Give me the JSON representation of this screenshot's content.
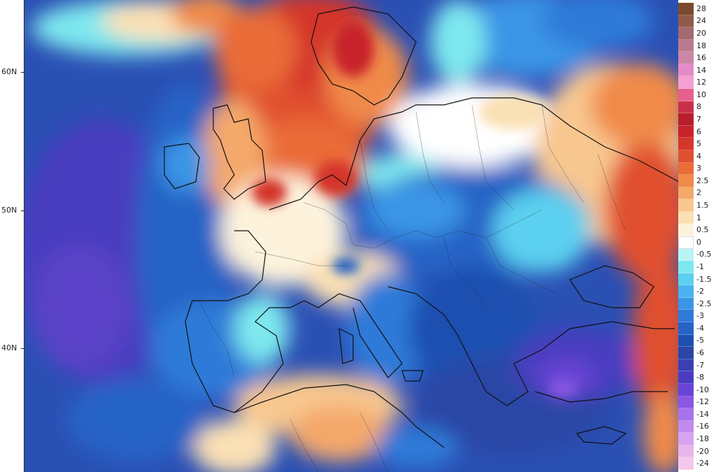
{
  "map": {
    "latitude_labels": [
      {
        "label": "60N"
      },
      {
        "label": "50N"
      },
      {
        "label": "40N"
      }
    ]
  },
  "colorbar": {
    "entries": [
      {
        "label": "28",
        "color": "#7a4a2e"
      },
      {
        "label": "24",
        "color": "#8e5a4a"
      },
      {
        "label": "20",
        "color": "#a46a6e"
      },
      {
        "label": "18",
        "color": "#b87a8c"
      },
      {
        "label": "16",
        "color": "#cc86a8"
      },
      {
        "label": "14",
        "color": "#e48ac6"
      },
      {
        "label": "12",
        "color": "#f4a0d2"
      },
      {
        "label": "10",
        "color": "#e6608e"
      },
      {
        "label": "8",
        "color": "#c8304a"
      },
      {
        "label": "7",
        "color": "#b81f2c"
      },
      {
        "label": "6",
        "color": "#c8232b"
      },
      {
        "label": "5",
        "color": "#d4362c"
      },
      {
        "label": "4",
        "color": "#e0502e"
      },
      {
        "label": "3",
        "color": "#ea6c38"
      },
      {
        "label": "2.5",
        "color": "#f08a4a"
      },
      {
        "label": "2",
        "color": "#f4a86a"
      },
      {
        "label": "1.5",
        "color": "#f8c790"
      },
      {
        "label": "1",
        "color": "#fbe0b4"
      },
      {
        "label": "0.5",
        "color": "#fdf3dc"
      },
      {
        "label": "0",
        "color": "#ffffff"
      },
      {
        "label": "-0.5",
        "color": "#b8f4f4"
      },
      {
        "label": "-1",
        "color": "#7ee8ee"
      },
      {
        "label": "-1.5",
        "color": "#5cd0f0"
      },
      {
        "label": "-2",
        "color": "#4ab2f0"
      },
      {
        "label": "-2.5",
        "color": "#3b95e6"
      },
      {
        "label": "-3",
        "color": "#2f7ad8"
      },
      {
        "label": "-4",
        "color": "#2563c6"
      },
      {
        "label": "-5",
        "color": "#1e50b0"
      },
      {
        "label": "-6",
        "color": "#2a46a6"
      },
      {
        "label": "-7",
        "color": "#3a40b0"
      },
      {
        "label": "-8",
        "color": "#4a3cc0"
      },
      {
        "label": "-10",
        "color": "#6a44d6"
      },
      {
        "label": "-12",
        "color": "#8a58e2"
      },
      {
        "label": "-14",
        "color": "#a872ea"
      },
      {
        "label": "-16",
        "color": "#c28aee"
      },
      {
        "label": "-18",
        "color": "#d6a4f0"
      },
      {
        "label": "-20",
        "color": "#e8b6ea"
      },
      {
        "label": "-24",
        "color": "#f4c8ec"
      }
    ]
  }
}
